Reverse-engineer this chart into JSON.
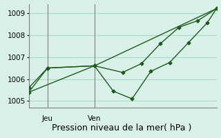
{
  "background_color": "#d8f0e8",
  "grid_color": "#b0d8c8",
  "line_color": "#1a5c1a",
  "title": "Pression niveau de la mer( hPa )",
  "title_fontsize": 9,
  "tick_fontsize": 7.5,
  "ylim": [
    1004.7,
    1009.4
  ],
  "yticks": [
    1005,
    1006,
    1007,
    1008,
    1009
  ],
  "xmin": 0,
  "xmax": 10,
  "vline_positions": [
    1,
    3.5
  ],
  "vline_labels": [
    "Jeu",
    "Ven"
  ],
  "line1_x": [
    0,
    1,
    3.5,
    5,
    6,
    7,
    8,
    9,
    10
  ],
  "line1_y": [
    1005.6,
    1006.5,
    1006.6,
    1006.3,
    1006.7,
    1007.6,
    1008.35,
    1008.65,
    1009.2
  ],
  "line2_x": [
    0,
    1,
    3.5,
    4.5,
    5.5,
    6.5,
    7.5,
    8.5,
    9.5,
    10
  ],
  "line2_y": [
    1005.4,
    1006.5,
    1006.6,
    1005.45,
    1005.1,
    1006.35,
    1006.75,
    1007.65,
    1008.55,
    1009.2
  ],
  "line3_x": [
    0,
    3.5,
    10
  ],
  "line3_y": [
    1005.4,
    1006.6,
    1009.2
  ]
}
